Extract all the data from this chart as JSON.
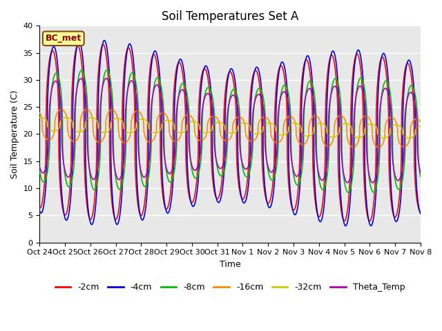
{
  "title": "Soil Temperatures Set A",
  "xlabel": "Time",
  "ylabel": "Soil Temperature (C)",
  "ylim": [
    0,
    40
  ],
  "annotation_text": "BC_met",
  "annotation_color": "#8B0000",
  "annotation_bg": "#FFFF99",
  "annotation_edge": "#8B4513",
  "x_tick_labels": [
    "Oct 24",
    "Oct 25",
    "Oct 26",
    "Oct 27",
    "Oct 28",
    "Oct 29",
    "Oct 30",
    "Oct 31",
    "Nov 1",
    "Nov 2",
    "Nov 3",
    "Nov 4",
    "Nov 5",
    "Nov 6",
    "Nov 7",
    "Nov 8"
  ],
  "series": [
    {
      "label": "-2cm",
      "color": "#FF0000",
      "lw": 1.2,
      "depth_factor": 0.95,
      "phase_delay": 0.0
    },
    {
      "label": "-4cm",
      "color": "#0000DD",
      "lw": 1.2,
      "depth_factor": 1.0,
      "phase_delay": 0.05
    },
    {
      "label": "-8cm",
      "color": "#00BB00",
      "lw": 1.2,
      "depth_factor": 0.65,
      "phase_delay": 0.15
    },
    {
      "label": "-16cm",
      "color": "#FF8800",
      "lw": 1.2,
      "depth_factor": 0.18,
      "phase_delay": 0.35
    },
    {
      "label": "-32cm",
      "color": "#CCCC00",
      "lw": 1.2,
      "depth_factor": 0.08,
      "phase_delay": 0.55
    },
    {
      "label": "Theta_Temp",
      "color": "#AA00AA",
      "lw": 1.2,
      "depth_factor": 0.55,
      "phase_delay": 0.12
    }
  ],
  "bg_color": "#E8E8E8",
  "fig_bg": "#FFFFFF",
  "grid_color": "#FFFFFF",
  "title_fontsize": 12,
  "label_fontsize": 9,
  "tick_fontsize": 8,
  "legend_fontsize": 9
}
